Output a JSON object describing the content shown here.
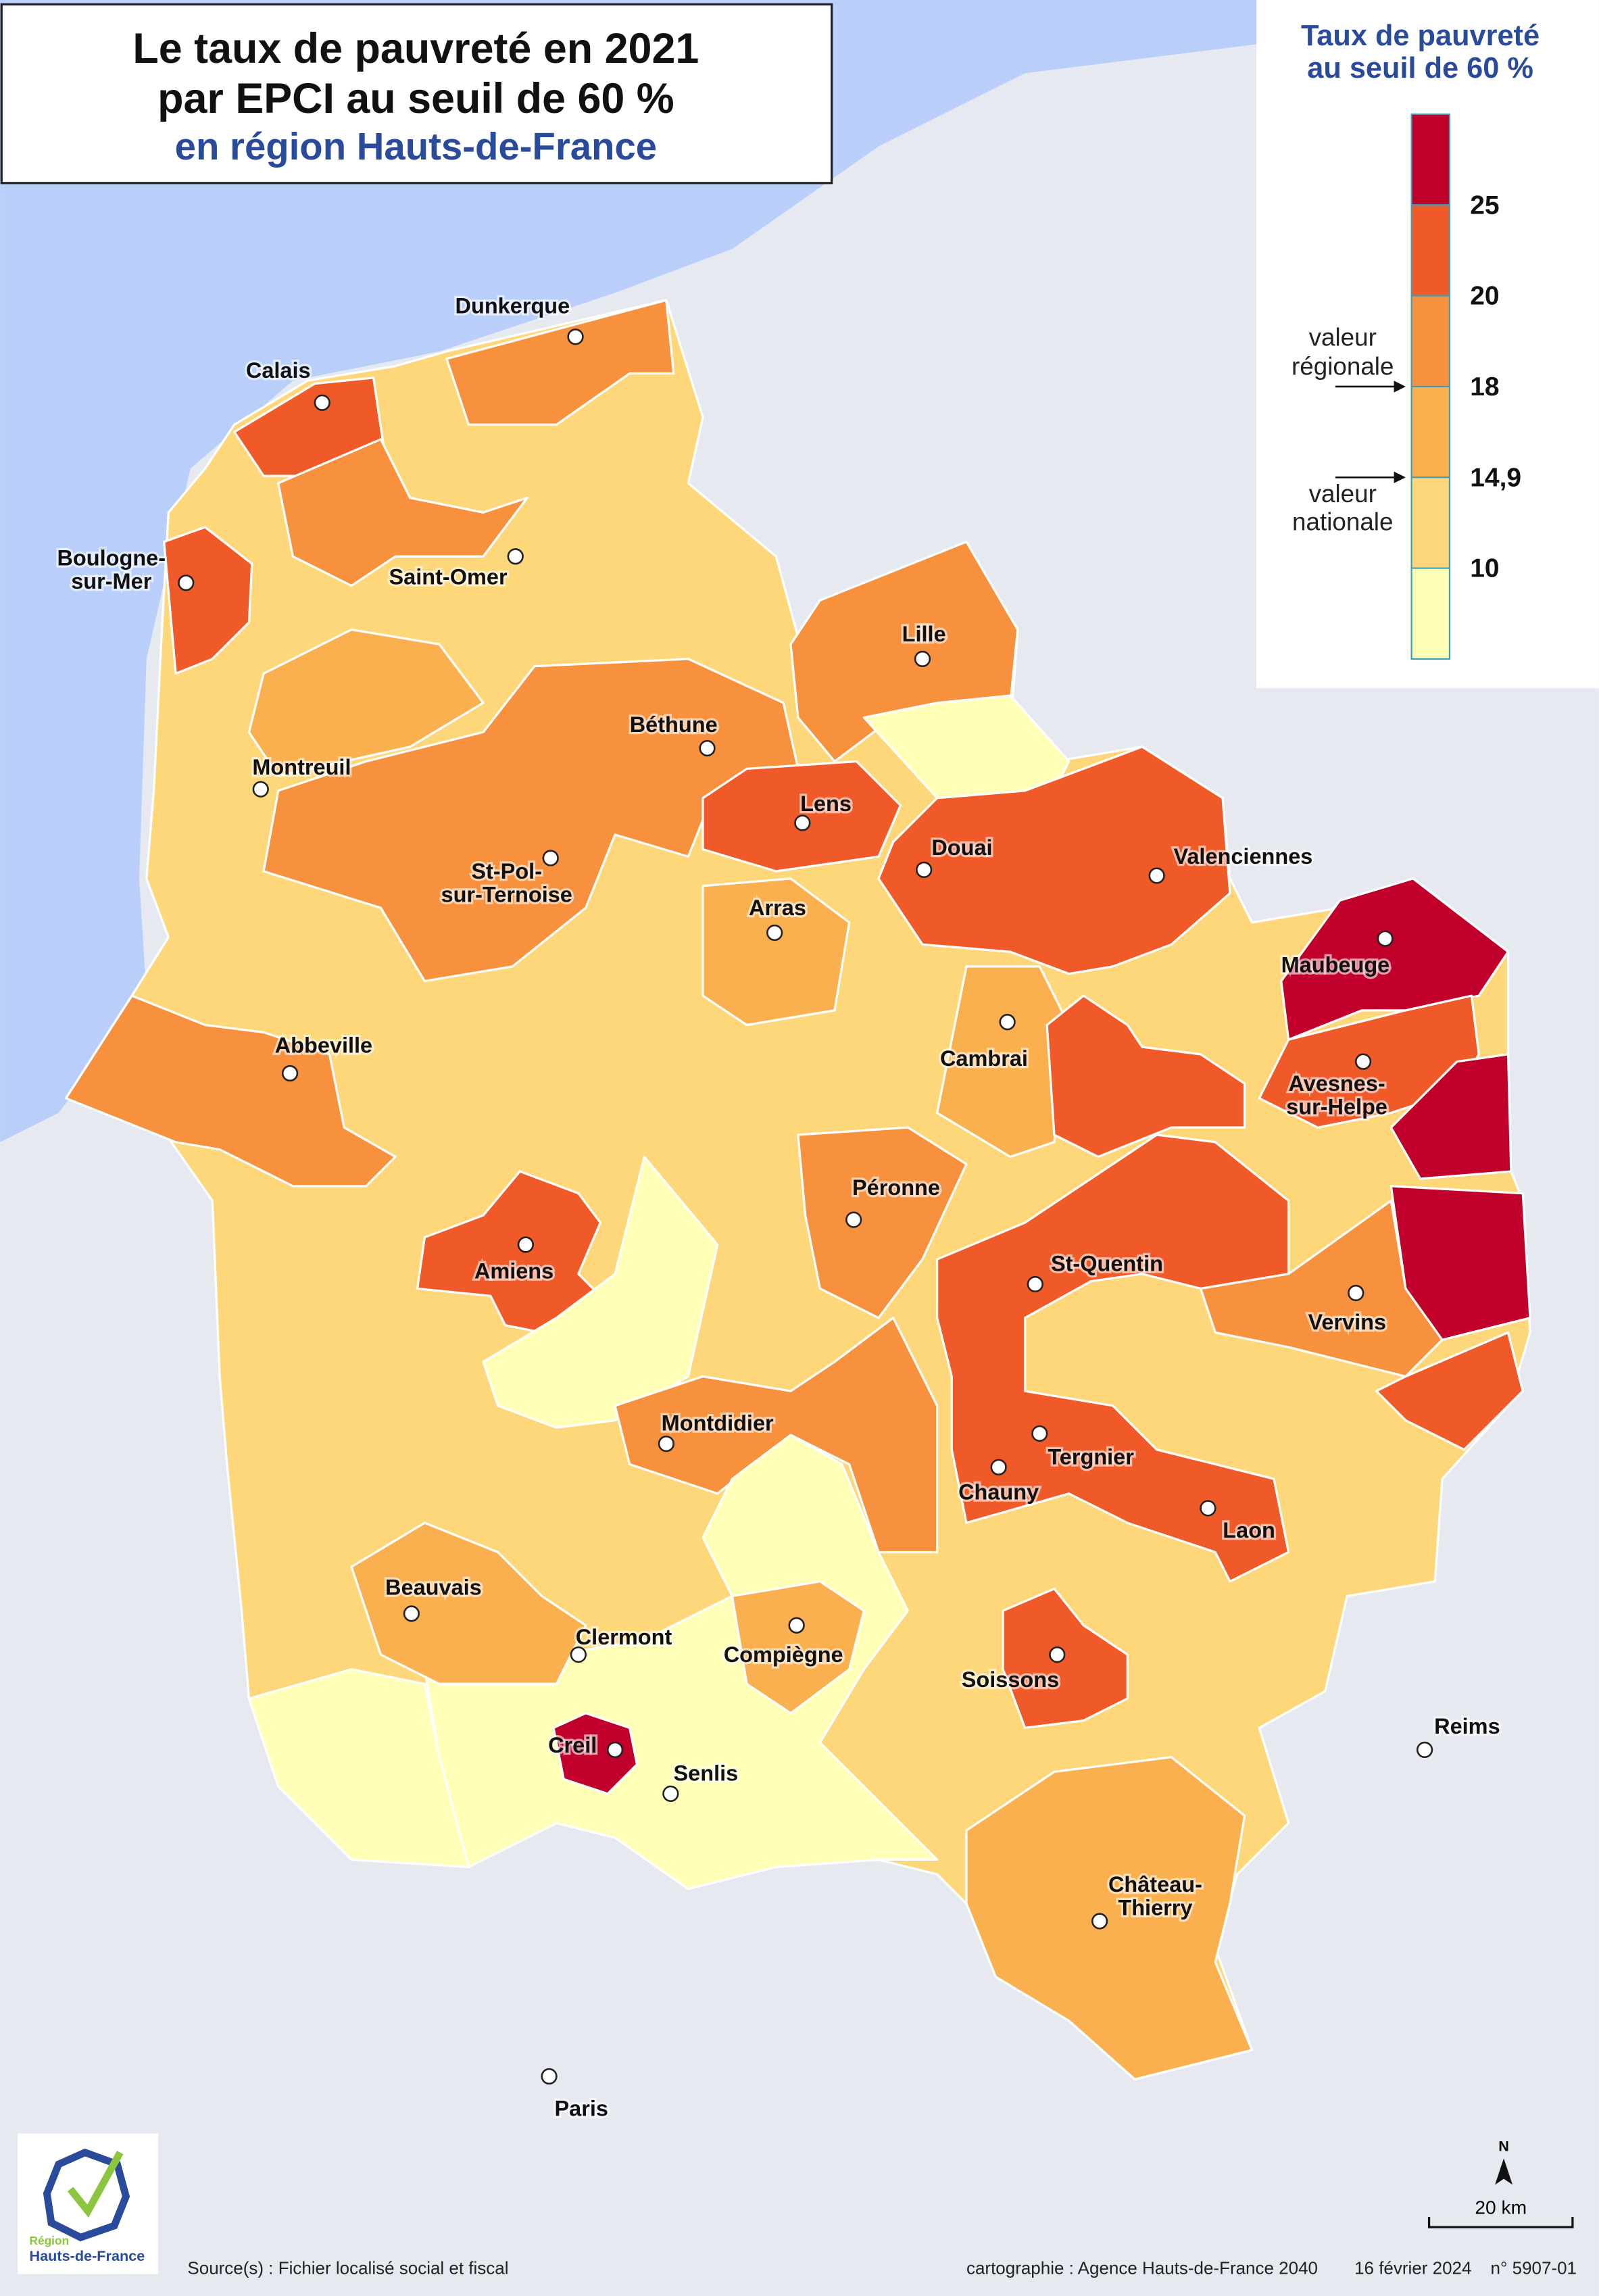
{
  "header": {
    "title": [
      "Le taux de pauvreté en 2021",
      "par EPCI au seuil de 60 %",
      "en région Hauts-de-France"
    ]
  },
  "legend": {
    "title": [
      "Taux de pauvreté",
      "au seuil de 60 %"
    ],
    "thresholds": [
      25,
      20,
      18,
      {
        "value": 14.9,
        "label": "14,9"
      },
      10
    ],
    "colors": [
      "#c0002a",
      "#f05a28",
      "#f7913d",
      "#fbb050",
      "#fdd77a",
      "#ffffb8"
    ],
    "regional_note": [
      "valeur",
      "régionale"
    ],
    "national_note": [
      "valeur",
      "nationale"
    ]
  },
  "cities": [
    {
      "name": [
        "Dunkerque"
      ]
    },
    {
      "name": [
        "Calais"
      ]
    },
    {
      "name": [
        "Boulogne-",
        "sur-Mer"
      ]
    },
    {
      "name": [
        "Saint-Omer"
      ]
    },
    {
      "name": [
        "Lille"
      ]
    },
    {
      "name": [
        "Béthune"
      ]
    },
    {
      "name": [
        "Montreuil"
      ]
    },
    {
      "name": [
        "Lens"
      ]
    },
    {
      "name": [
        "Douai"
      ]
    },
    {
      "name": [
        "Valenciennes"
      ]
    },
    {
      "name": [
        "St-Pol-",
        "sur-Ternoise"
      ]
    },
    {
      "name": [
        "Arras"
      ]
    },
    {
      "name": [
        "Maubeuge"
      ]
    },
    {
      "name": [
        "Abbeville"
      ]
    },
    {
      "name": [
        "Cambrai"
      ]
    },
    {
      "name": [
        "Avesnes-",
        "sur-Helpe"
      ]
    },
    {
      "name": [
        "Péronne"
      ]
    },
    {
      "name": [
        "Amiens"
      ]
    },
    {
      "name": [
        "St-Quentin"
      ]
    },
    {
      "name": [
        "Vervins"
      ]
    },
    {
      "name": [
        "Montdidier"
      ]
    },
    {
      "name": [
        "Tergnier"
      ]
    },
    {
      "name": [
        "Chauny"
      ]
    },
    {
      "name": [
        "Laon"
      ]
    },
    {
      "name": [
        "Beauvais"
      ]
    },
    {
      "name": [
        "Clermont"
      ]
    },
    {
      "name": [
        "Compiègne"
      ]
    },
    {
      "name": [
        "Soissons"
      ]
    },
    {
      "name": [
        "Reims"
      ]
    },
    {
      "name": [
        "Creil"
      ]
    },
    {
      "name": [
        "Senlis"
      ]
    },
    {
      "name": [
        "Château-",
        "Thierry"
      ]
    },
    {
      "name": [
        "Paris"
      ]
    }
  ],
  "north": "N",
  "scale": "20 km",
  "logo": [
    "Région",
    "Hauts-de-France"
  ],
  "footer": {
    "source": "Source(s) : Fichier localisé social et fiscal",
    "credit": "cartographie : Agence Hauts-de-France 2040",
    "date": "16 février 2024",
    "number": "n° 5907-01"
  }
}
